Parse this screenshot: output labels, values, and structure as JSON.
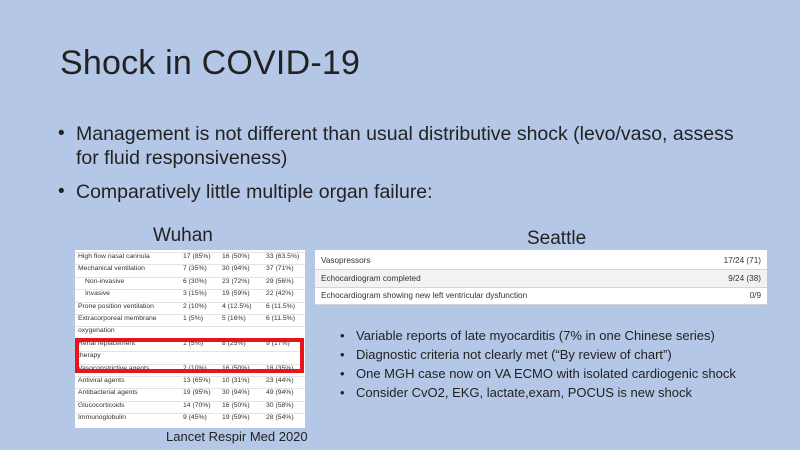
{
  "slide": {
    "title": "Shock in COVID-19",
    "bullets": [
      "Management is not different than usual distributive shock (levo/vaso, assess for fluid responsiveness)",
      "Comparatively little multiple organ failure:"
    ],
    "wuhan_label": "Wuhan",
    "seattle_label": "Seattle",
    "citation": "Lancet Respir Med 2020",
    "highlight_color": "#e8141b",
    "background_color": "#b4c7e7"
  },
  "wuhan_table": {
    "rows": [
      {
        "label": "High flow nasal cannula",
        "c1": "17 (85%)",
        "c2": "16 (50%)",
        "c3": "33 (63.5%)",
        "sub": false
      },
      {
        "label": "Mechanical ventilation",
        "c1": "7 (35%)",
        "c2": "30 (94%)",
        "c3": "37 (71%)",
        "sub": false
      },
      {
        "label": "Non-invasive",
        "c1": "6 (30%)",
        "c2": "23 (72%)",
        "c3": "29 (56%)",
        "sub": true
      },
      {
        "label": "Invasive",
        "c1": "3 (15%)",
        "c2": "19 (59%)",
        "c3": "22 (42%)",
        "sub": true
      },
      {
        "label": "Prone position ventilation",
        "c1": "2 (10%)",
        "c2": "4 (12.5%)",
        "c3": "6 (11.5%)",
        "sub": false
      },
      {
        "label": "Extracorporeal membrane",
        "c1": "1 (5%)",
        "c2": "5 (16%)",
        "c3": "6 (11.5%)",
        "sub": false
      },
      {
        "label": "oxygenation",
        "c1": "",
        "c2": "",
        "c3": "",
        "sub": false
      },
      {
        "label": "Renal replacement",
        "c1": "1 (5%)",
        "c2": "8 (25%)",
        "c3": "9 (17%)",
        "sub": false
      },
      {
        "label": "therapy",
        "c1": "",
        "c2": "",
        "c3": "",
        "sub": false
      },
      {
        "label": "Vasoconstrictive agents",
        "c1": "2 (10%)",
        "c2": "16 (50%)",
        "c3": "18 (35%)",
        "sub": false
      },
      {
        "label": "Antiviral agents",
        "c1": "13 (65%)",
        "c2": "10 (31%)",
        "c3": "23 (44%)",
        "sub": false
      },
      {
        "label": "Antibacterial agents",
        "c1": "19 (95%)",
        "c2": "30 (94%)",
        "c3": "49 (94%)",
        "sub": false
      },
      {
        "label": "Glucocorticoids",
        "c1": "14 (70%)",
        "c2": "16 (50%)",
        "c3": "30 (58%)",
        "sub": false
      },
      {
        "label": "Immunoglobulin",
        "c1": "9 (45%)",
        "c2": "19 (59%)",
        "c3": "28 (54%)",
        "sub": false
      }
    ]
  },
  "seattle_table": {
    "rows": [
      {
        "label": "Vasopressors",
        "value": "17/24 (71)"
      },
      {
        "label": "Echocardiogram completed",
        "value": "9/24 (38)"
      },
      {
        "label": "Echocardiogram showing new left ventricular dysfunction",
        "value": "0/9"
      }
    ]
  },
  "sub_bullets": [
    "Variable reports of late myocarditis (7% in one Chinese series)",
    "Diagnostic criteria not clearly met (“By review of chart”)",
    "One MGH case now on VA ECMO with isolated cardiogenic shock",
    "Consider CvO2, EKG, lactate,exam, POCUS is new shock"
  ]
}
